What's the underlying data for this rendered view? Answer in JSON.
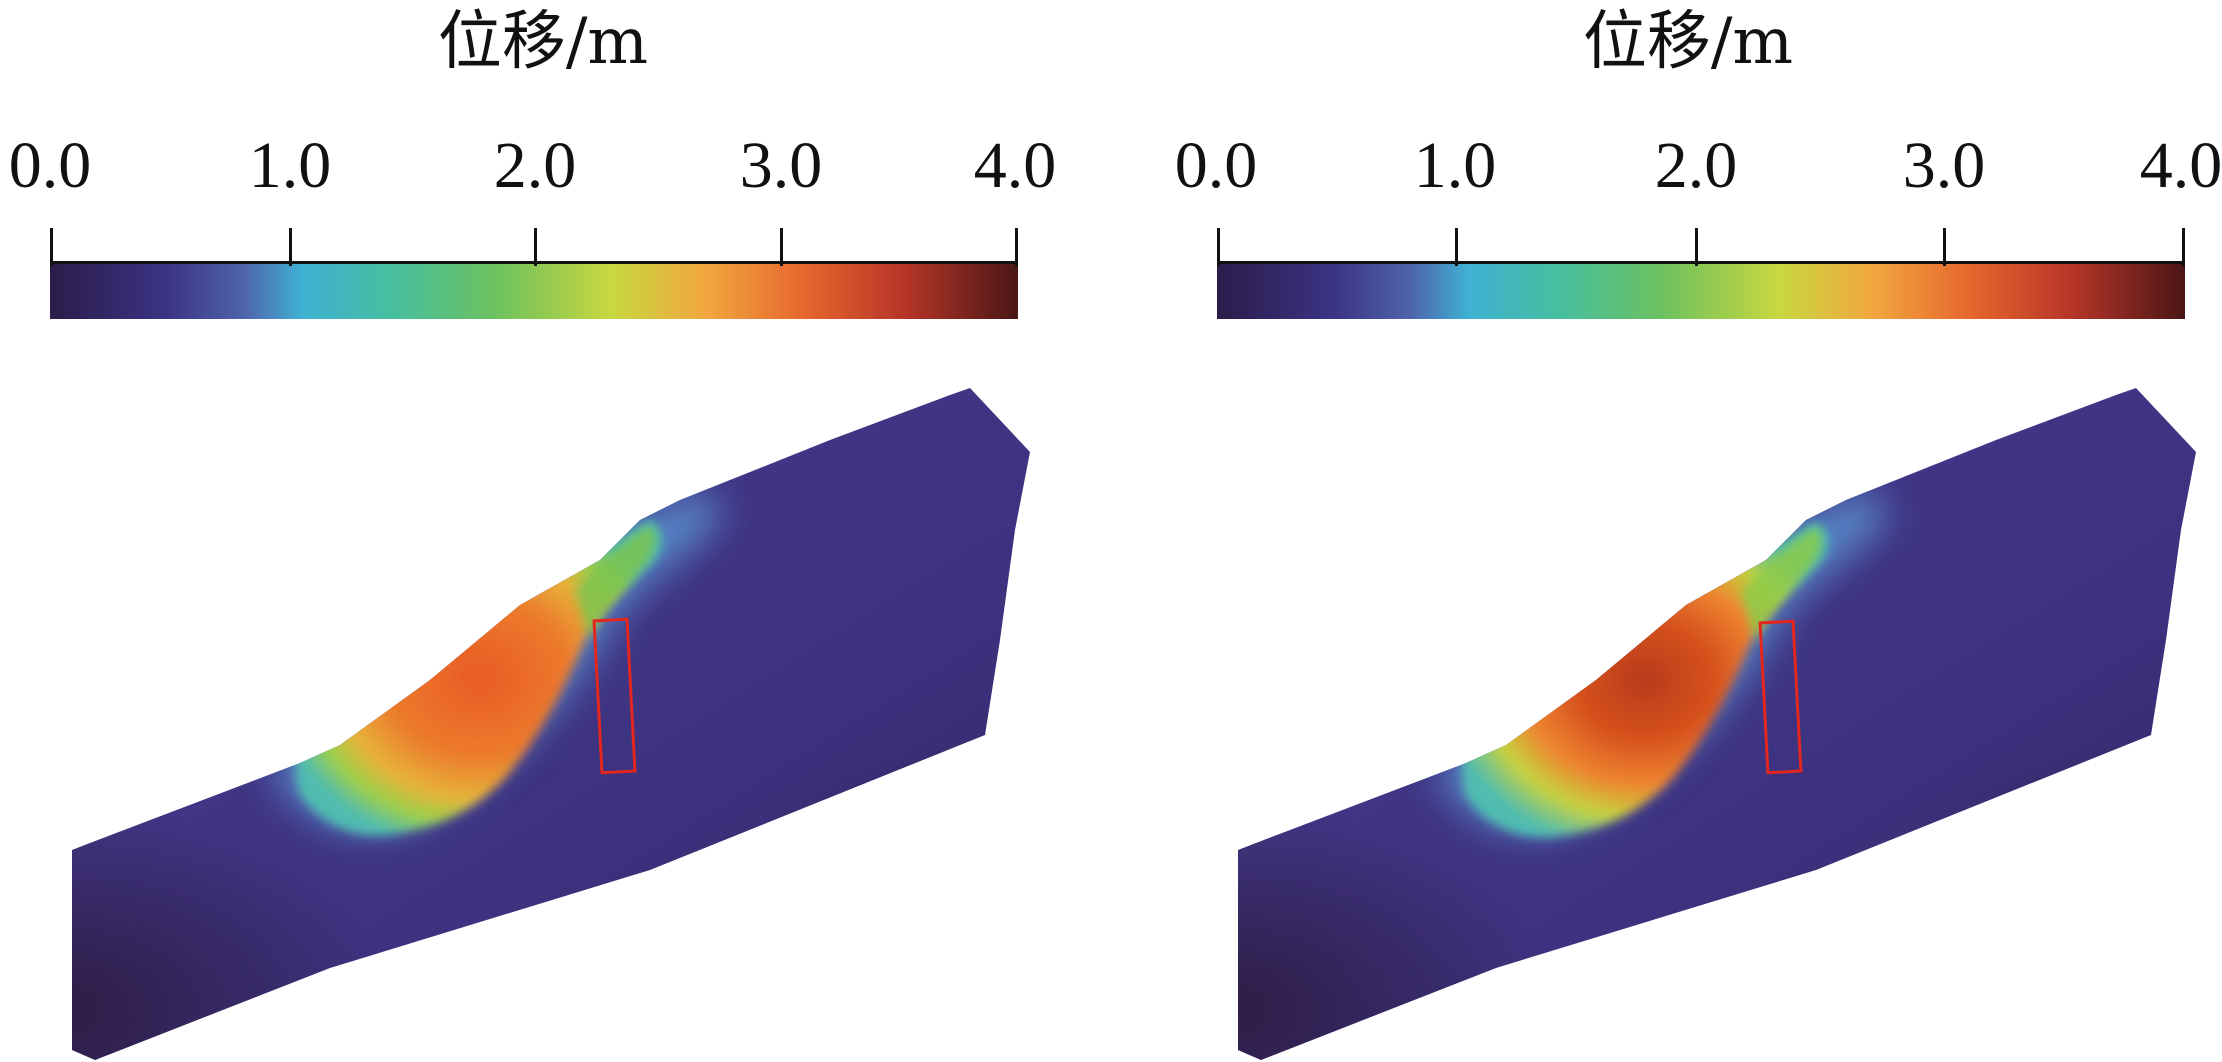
{
  "panels": [
    {
      "legend_title": "位移/m",
      "ticks": [
        "0.0",
        "1.0",
        "2.0",
        "3.0",
        "4.0"
      ],
      "colormap": [
        "#2d1f52",
        "#3e3a86",
        "#5a6db0",
        "#3fb0cf",
        "#49c0a6",
        "#6fc160",
        "#c6d63e",
        "#f0a23c",
        "#e66a2c",
        "#c4402b",
        "#7a1f1f",
        "#3a1414"
      ],
      "marker_color": "#e3261e"
    },
    {
      "legend_title": "位移/m",
      "ticks": [
        "0.0",
        "1.0",
        "2.0",
        "3.0",
        "4.0"
      ],
      "colormap": [
        "#2d1f52",
        "#3e3a86",
        "#5a6db0",
        "#3fb0cf",
        "#49c0a6",
        "#6fc160",
        "#c6d63e",
        "#f0a23c",
        "#e66a2c",
        "#c4402b",
        "#7a1f1f",
        "#3a1414"
      ],
      "marker_color": "#e3261e"
    }
  ]
}
